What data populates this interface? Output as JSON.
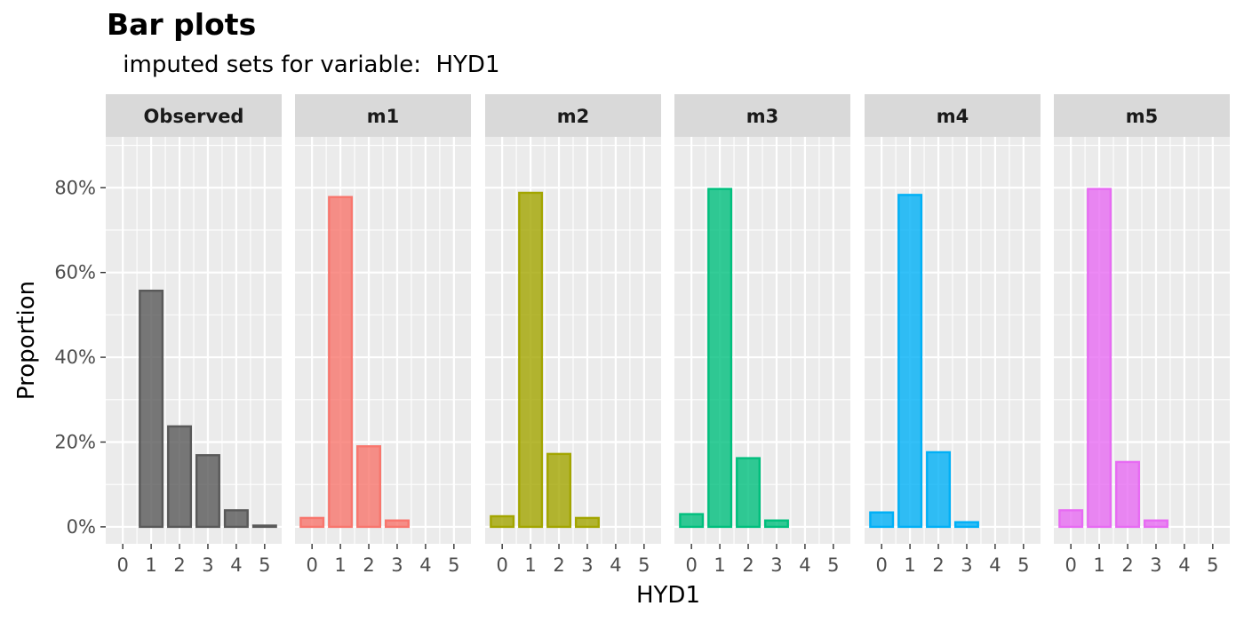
{
  "chart_data": {
    "type": "bar",
    "title": "Bar plots",
    "subtitle": " imputed sets for variable:  HYD1",
    "xlabel": "HYD1",
    "ylabel": "Proportion",
    "x_ticks": [
      "0",
      "1",
      "2",
      "3",
      "4",
      "5"
    ],
    "y_ticks": [
      "0%",
      "20%",
      "40%",
      "60%",
      "80%"
    ],
    "ylim": [
      -0.04,
      0.92
    ],
    "grid": true,
    "panels": [
      {
        "name": "Observed",
        "color": "#595959",
        "points": [
          {
            "x": 1,
            "y": 0.557
          },
          {
            "x": 2,
            "y": 0.237
          },
          {
            "x": 3,
            "y": 0.169
          },
          {
            "x": 4,
            "y": 0.039
          },
          {
            "x": 5,
            "y": 0.003
          }
        ]
      },
      {
        "name": "m1",
        "color": "#F8766D",
        "points": [
          {
            "x": 0,
            "y": 0.021
          },
          {
            "x": 1,
            "y": 0.778
          },
          {
            "x": 2,
            "y": 0.19
          },
          {
            "x": 3,
            "y": 0.015
          }
        ]
      },
      {
        "name": "m2",
        "color": "#A3A500",
        "points": [
          {
            "x": 0,
            "y": 0.025
          },
          {
            "x": 1,
            "y": 0.788
          },
          {
            "x": 2,
            "y": 0.172
          },
          {
            "x": 3,
            "y": 0.021
          }
        ]
      },
      {
        "name": "m3",
        "color": "#00BF7D",
        "points": [
          {
            "x": 0,
            "y": 0.03
          },
          {
            "x": 1,
            "y": 0.797
          },
          {
            "x": 2,
            "y": 0.162
          },
          {
            "x": 3,
            "y": 0.015
          }
        ]
      },
      {
        "name": "m4",
        "color": "#00B0F6",
        "points": [
          {
            "x": 0,
            "y": 0.034
          },
          {
            "x": 1,
            "y": 0.783
          },
          {
            "x": 2,
            "y": 0.176
          },
          {
            "x": 3,
            "y": 0.011
          }
        ]
      },
      {
        "name": "m5",
        "color": "#E76BF3",
        "points": [
          {
            "x": 0,
            "y": 0.039
          },
          {
            "x": 1,
            "y": 0.797
          },
          {
            "x": 2,
            "y": 0.153
          },
          {
            "x": 3,
            "y": 0.015
          }
        ]
      }
    ]
  }
}
